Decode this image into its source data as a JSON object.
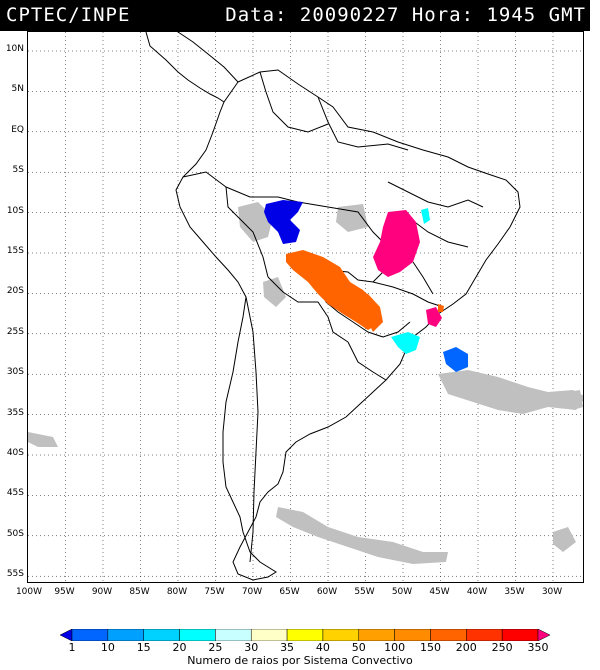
{
  "header": {
    "source": "CPTEC/INPE",
    "datetime": "Data: 20090227 Hora: 1945 GMT"
  },
  "map": {
    "lat_labels": [
      "10N",
      "5N",
      "EQ",
      "5S",
      "10S",
      "15S",
      "20S",
      "25S",
      "30S",
      "35S",
      "40S",
      "45S",
      "50S",
      "55S"
    ],
    "lon_labels": [
      "100W",
      "95W",
      "90W",
      "85W",
      "80W",
      "75W",
      "70W",
      "65W",
      "60W",
      "55W",
      "50W",
      "45W",
      "40W",
      "35W",
      "30W"
    ]
  },
  "legend": {
    "ticks": [
      "1",
      "10",
      "15",
      "20",
      "25",
      "30",
      "35",
      "40",
      "50",
      "100",
      "150",
      "200",
      "250",
      "350"
    ],
    "colors": [
      "#0000e6",
      "#0066ff",
      "#00a0ff",
      "#00d2ff",
      "#00ffff",
      "#c8ffff",
      "#ffffc8",
      "#ffff00",
      "#ffd200",
      "#ffa000",
      "#ff8c00",
      "#ff6400",
      "#ff3200",
      "#ff0000",
      "#ff007f"
    ],
    "title": "Numero de raios por Sistema Convectivo"
  }
}
